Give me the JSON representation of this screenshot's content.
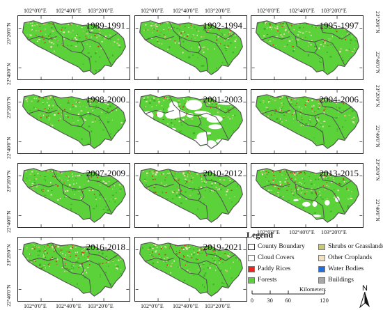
{
  "graticule": {
    "lon": [
      "102°0'0\"E",
      "102°40'0\"E",
      "103°20'0\"E"
    ],
    "lat": [
      "23°20'0\"N",
      "22°40'0\"N"
    ]
  },
  "panels": [
    {
      "label": "1989-1991",
      "cloud": "none"
    },
    {
      "label": "1992-1994",
      "cloud": "none"
    },
    {
      "label": "1995-1997",
      "cloud": "none"
    },
    {
      "label": "1998-2000",
      "cloud": "none"
    },
    {
      "label": "2001-2003",
      "cloud": "heavy"
    },
    {
      "label": "2004-2006",
      "cloud": "none"
    },
    {
      "label": "2007-2009",
      "cloud": "none"
    },
    {
      "label": "2010-2012",
      "cloud": "none"
    },
    {
      "label": "2013-2015",
      "cloud": "light"
    },
    {
      "label": "2016-2018",
      "cloud": "none"
    },
    {
      "label": "2019-2021",
      "cloud": "none"
    }
  ],
  "legend": {
    "title": "Legend",
    "items": [
      {
        "label": "County Boundary",
        "color": "#ffffff",
        "kind": "outline"
      },
      {
        "label": "Shrubs or Grasslands",
        "color": "#c8c87a",
        "kind": "fill"
      },
      {
        "label": "Cloud Covers",
        "color": "#ffffff",
        "kind": "fill"
      },
      {
        "label": "Other Croplands",
        "color": "#f5e1c0",
        "kind": "fill"
      },
      {
        "label": "Paddy Rices",
        "color": "#e8261f",
        "kind": "fill"
      },
      {
        "label": "Water Bodies",
        "color": "#1f6fe0",
        "kind": "fill"
      },
      {
        "label": "Forests",
        "color": "#5bd13a",
        "kind": "fill"
      },
      {
        "label": "Buildings",
        "color": "#a8a8a8",
        "kind": "fill"
      }
    ]
  },
  "scale": {
    "ticks": [
      "0",
      "30",
      "60",
      "120"
    ],
    "unit": "Kilometers"
  },
  "north": "N",
  "colors": {
    "forest": "#5bd13a",
    "forest_dark": "#3fae2a",
    "paddy": "#e8261f",
    "cropland": "#f5e1c0",
    "shrub": "#c8c87a",
    "boundary": "#555555"
  }
}
